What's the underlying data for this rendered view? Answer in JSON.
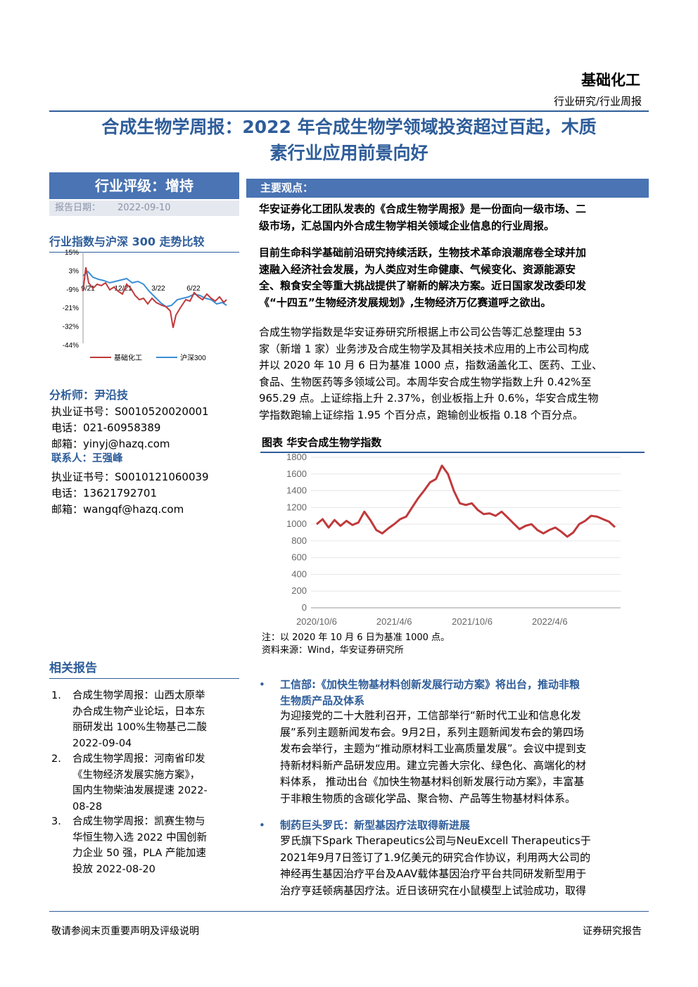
{
  "header": {
    "sector": "基础化工",
    "report_type": "行业研究/行业周报"
  },
  "title": {
    "line1": "合成生物学周报：2022 年合成生物学领域投资超过百起，木质",
    "line2": "素行业应用前景向好"
  },
  "rating": {
    "label": "行业评级：增持",
    "date_label": "报告日期：",
    "date": "2022-09-10"
  },
  "mini_chart": {
    "heading": "行业指数与沪深 300 走势比较",
    "y_ticks": [
      "15%",
      "3%",
      "-9%",
      "-21%",
      "-32%",
      "-44%"
    ],
    "x_ticks": [
      "9/21",
      "12/21",
      "3/22",
      "6/22"
    ],
    "legend": [
      "基础化工",
      "沪深300"
    ],
    "colors": {
      "sector": "#c0393b",
      "hs300": "#3a8fd6"
    }
  },
  "analyst": {
    "label": "分析师：",
    "name": "尹沿技",
    "cert_label": "执业证书号：",
    "cert": "S0010520020001",
    "phone_label": "电话：",
    "phone": "021-60958389",
    "email_label": "邮箱：",
    "email": "yinyj@hazq.com"
  },
  "contact": {
    "label": "联系人：",
    "name": "王强峰",
    "cert_label": "执业证书号：",
    "cert": "S0010121060039",
    "phone_label": "电话：",
    "phone": "13621792701",
    "email_label": "邮箱：",
    "email": "wangqf@hazq.com"
  },
  "related": {
    "heading": "相关报告",
    "items": [
      {
        "num": "1.",
        "lines": [
          "合成生物学周报：山西太原举",
          "办合成生物产业论坛，日本东",
          "丽研发出 100%生物基己二酸",
          "2022-09-04"
        ]
      },
      {
        "num": "2.",
        "lines": [
          "合成生物学周报：河南省印发",
          "《生物经济发展实施方案》，",
          "国内生物柴油发展提速 2022-",
          "08-28"
        ]
      },
      {
        "num": "3.",
        "lines": [
          "合成生物学周报：凯赛生物与",
          "华恒生物入选 2022 中国创新",
          "力企业 50 强，PLA 产能加速",
          "投放 2022-08-20"
        ]
      }
    ]
  },
  "main": {
    "heading": "主要观点：",
    "para1": [
      "华安证券化工团队发表的《合成生物学周报》是一份面向一级市场、二",
      "级市场，汇总国内外合成生物学相关领域企业信息的行业周报。"
    ],
    "para2": [
      "目前生命科学基础前沿研究持续活跃，生物技术革命浪潮席卷全球并加",
      "速融入经济社会发展，为人类应对生命健康、气候变化、资源能源安",
      "全、粮食安全等重大挑战提供了崭新的解决方案。近日国家发改委印发",
      "《“十四五”生物经济发展规划》,生物经济万亿赛道呼之欲出。"
    ],
    "para3": [
      "合成生物学指数是华安证券研究所根据上市公司公告等汇总整理由 53",
      "家（新增 1 家）业务涉及合成生物学及其相关技术应用的上市公司构成",
      "并以 2020 年 10 月 6 日为基准 1000 点，指数涵盖化工、医药、工业、",
      "食品、生物医药等多领域公司。本周华安合成生物学指数上升 0.42%至",
      "965.29 点。上证综指上升 2.37%，创业板指上升 0.6%，华安合成生物",
      "学指数跑输上证综指 1.95 个百分点，跑输创业板指 0.18 个百分点。"
    ]
  },
  "chart_data": {
    "type": "line",
    "title": "图表 华安合成生物学指数",
    "ylim": [
      0,
      1800
    ],
    "y_ticks": [
      "1800",
      "1600",
      "1400",
      "1200",
      "1000",
      "800",
      "600",
      "400",
      "200",
      "0"
    ],
    "x_ticks": [
      "2020/10/6",
      "2021/4/6",
      "2021/10/6",
      "2022/4/6"
    ],
    "series": [
      {
        "color": "#c0393b",
        "x": [
          "2020-10-06",
          "2020-10-20",
          "2020-11-03",
          "2020-11-17",
          "2020-12-01",
          "2020-12-15",
          "2020-12-29",
          "2021-01-12",
          "2021-01-26",
          "2021-02-09",
          "2021-02-23",
          "2021-03-09",
          "2021-03-23",
          "2021-04-06",
          "2021-04-20",
          "2021-05-04",
          "2021-05-18",
          "2021-06-01",
          "2021-06-15",
          "2021-06-29",
          "2021-07-13",
          "2021-07-27",
          "2021-08-10",
          "2021-08-24",
          "2021-09-07",
          "2021-09-21",
          "2021-10-05",
          "2021-10-19",
          "2021-11-02",
          "2021-11-16",
          "2021-11-30",
          "2021-12-14",
          "2021-12-28",
          "2022-01-11",
          "2022-01-25",
          "2022-02-08",
          "2022-02-22",
          "2022-03-08",
          "2022-03-22",
          "2022-04-05",
          "2022-04-19",
          "2022-05-03",
          "2022-05-17",
          "2022-05-31",
          "2022-06-14",
          "2022-06-28",
          "2022-07-12",
          "2022-07-26",
          "2022-08-09",
          "2022-08-23",
          "2022-09-06"
        ],
        "values": [
          1000,
          1060,
          960,
          1050,
          980,
          1040,
          990,
          1020,
          1150,
          1050,
          930,
          890,
          950,
          1000,
          1060,
          1090,
          1200,
          1310,
          1400,
          1500,
          1540,
          1700,
          1600,
          1400,
          1250,
          1230,
          1250,
          1170,
          1120,
          1130,
          1100,
          1150,
          1080,
          1010,
          940,
          980,
          1000,
          930,
          890,
          930,
          960,
          910,
          850,
          900,
          1000,
          1040,
          1100,
          1090,
          1060,
          1030,
          965
        ]
      }
    ],
    "notes": [
      "注：以 2020 年 10 月 6 日为基准 1000 点。",
      "资料来源：Wind，华安证券研究所"
    ]
  },
  "news": [
    {
      "title_lines": [
        "工信部:《加快生物基材料创新发展行动方案》将出台，推动非粮",
        "生物质产品及体系"
      ],
      "body": [
        "为迎接党的二十大胜利召开，工信部举行“新时代工业和信息化发",
        "展”系列主题新闻发布会。9月2日，系列主题新闻发布会的第四场",
        "发布会举行，主题为“推动原材料工业高质量发展”。会议中提到支",
        "持新材料新产品研发应用。建立完善大宗化、绿色化、高端化的材",
        "料体系， 推动出台《加快生物基材料创新发展行动方案》，丰富基",
        "于非粮生物质的含碳化学品、聚合物、产品等生物基材料体系。"
      ]
    },
    {
      "title_lines": [
        "制药巨头罗氏：新型基因疗法取得新进展"
      ],
      "body": [
        "罗氏旗下Spark Therapeutics公司与NeuExcell Therapeutics于",
        "2021年9月7日签订了1.9亿美元的研究合作协议，利用两大公司的",
        "神经再生基因治疗平台及AAV载体基因治疗平台共同研发新型用于",
        "治疗亨廷顿病基因疗法。近日该研究在小鼠模型上试验成功，取得"
      ]
    }
  ],
  "footer": {
    "left": "敬请参阅末页重要声明及评级说明",
    "right": "证券研究报告"
  }
}
